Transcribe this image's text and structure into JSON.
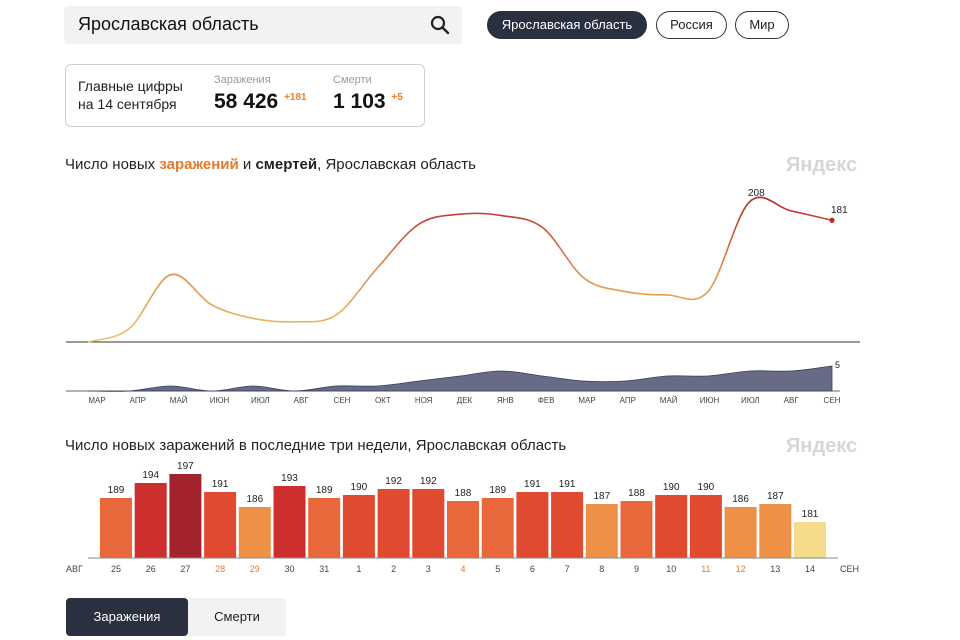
{
  "search": {
    "value": "Ярославская область"
  },
  "regions": [
    {
      "label": "Ярославская область",
      "active": true
    },
    {
      "label": "Россия",
      "active": false
    },
    {
      "label": "Мир",
      "active": false
    }
  ],
  "summary": {
    "label_line1": "Главные цифры",
    "label_line2": "на 14 сентября",
    "infections": {
      "label": "Заражения",
      "value": "58 426",
      "delta": "+181"
    },
    "deaths": {
      "label": "Смерти",
      "value": "1 103",
      "delta": "+5"
    }
  },
  "chart1": {
    "title_pre": "Число новых ",
    "title_inf": "заражений",
    "title_mid": " и ",
    "title_dead": "смертей",
    "title_post": ", Ярославская область",
    "watermark": "Яндекс",
    "peak_label": "208",
    "last_label": "181",
    "deaths_last_label": "5",
    "months": [
      "МАР",
      "АПР",
      "МАЙ",
      "ИЮН",
      "ИЮЛ",
      "АВГ",
      "СЕН",
      "ОКТ",
      "НОЯ",
      "ДЕК",
      "ЯНВ",
      "ФЕВ",
      "МАР",
      "АПР",
      "МАЙ",
      "ИЮН",
      "ИЮЛ",
      "АВГ",
      "СЕН"
    ]
  },
  "chart2": {
    "title": "Число новых заражений в последние три недели, Ярославская область",
    "watermark": "Яндекс",
    "month_start": "АВГ",
    "month_end": "СЕН"
  },
  "chart_data": [
    {
      "type": "line",
      "title": "Число новых заражений и смертей, Ярославская область",
      "series": [
        {
          "name": "заражений",
          "x": [
            "МАР",
            "АПР",
            "МАЙ",
            "ИЮН",
            "ИЮЛ",
            "АВГ",
            "СЕН",
            "ОКТ",
            "НОЯ",
            "ДЕК",
            "ЯНВ",
            "ФЕВ",
            "МАР",
            "АПР",
            "МАЙ",
            "ИЮН",
            "ИЮЛ",
            "АВГ",
            "СЕН"
          ],
          "values": [
            0,
            20,
            100,
            55,
            35,
            30,
            40,
            110,
            175,
            190,
            188,
            170,
            95,
            75,
            70,
            75,
            208,
            195,
            181
          ]
        },
        {
          "name": "смертей",
          "x": [
            "МАР",
            "АПР",
            "МАЙ",
            "ИЮН",
            "ИЮЛ",
            "АВГ",
            "СЕН",
            "ОКТ",
            "НОЯ",
            "ДЕК",
            "ЯНВ",
            "ФЕВ",
            "МАР",
            "АПР",
            "МАЙ",
            "ИЮН",
            "ИЮЛ",
            "АВГ",
            "СЕН"
          ],
          "values": [
            0,
            0,
            1,
            0,
            1,
            0,
            1,
            1,
            2,
            3,
            4,
            3,
            2,
            2,
            3,
            3,
            4,
            4,
            5
          ]
        }
      ],
      "annotations": [
        "208",
        "181",
        "5"
      ]
    },
    {
      "type": "bar",
      "title": "Число новых заражений в последние три недели, Ярославская область",
      "categories": [
        "25",
        "26",
        "27",
        "28",
        "29",
        "30",
        "31",
        "1",
        "2",
        "3",
        "4",
        "5",
        "6",
        "7",
        "8",
        "9",
        "10",
        "11",
        "12",
        "13",
        "14"
      ],
      "values": [
        189,
        194,
        197,
        191,
        186,
        193,
        189,
        190,
        192,
        192,
        188,
        189,
        191,
        191,
        187,
        188,
        190,
        190,
        186,
        187,
        181
      ],
      "weekend_categories": [
        "28",
        "29",
        "4",
        "11",
        "12"
      ],
      "xlabel": "",
      "ylabel": ""
    }
  ]
}
